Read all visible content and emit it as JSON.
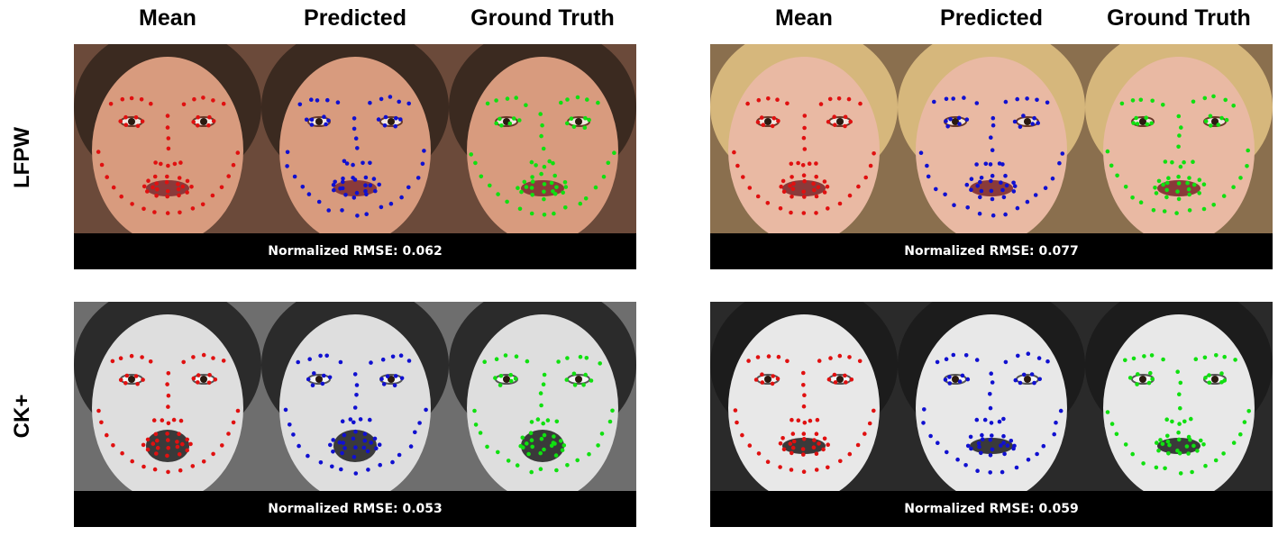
{
  "headers": {
    "left": [
      "Mean",
      "Predicted",
      "Ground Truth"
    ],
    "right": [
      "Mean",
      "Predicted",
      "Ground Truth"
    ]
  },
  "row_labels": [
    "LFPW",
    "CK+"
  ],
  "panels": [
    {
      "dataset": "LFPW",
      "rmse_text": "Normalized RMSE: 0.062"
    },
    {
      "dataset": "LFPW",
      "rmse_text": "Normalized RMSE: 0.077"
    },
    {
      "dataset": "CK+",
      "rmse_text": "Normalized RMSE: 0.053"
    },
    {
      "dataset": "CK+",
      "rmse_text": "Normalized RMSE: 0.059"
    }
  ],
  "landmark_colors": {
    "mean": "#e01010",
    "predicted": "#1010d0",
    "ground_truth": "#10e010"
  },
  "photo_tones": {
    "lfpw_1": {
      "bg": "#6b4a3a",
      "skin": "#d89b7e",
      "hair": "#3b2a20"
    },
    "lfpw_2": {
      "bg": "#8a6f4e",
      "skin": "#e9b9a3",
      "hair": "#d6b77c"
    },
    "ck_1": {
      "bg": "#6e6e6e",
      "skin": "#dedede",
      "hair": "#2b2b2b"
    },
    "ck_2": {
      "bg": "#2a2a2a",
      "skin": "#e8e8e8",
      "hair": "#1c1c1c"
    }
  }
}
